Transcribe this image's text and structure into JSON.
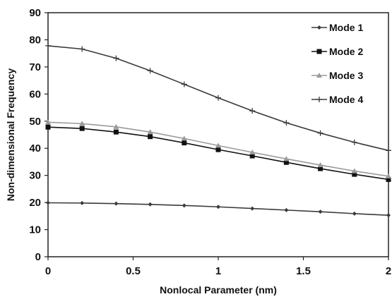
{
  "chart_data": {
    "type": "line",
    "title": "",
    "xlabel": "Nonlocal Parameter  (nm)",
    "ylabel": "Non-dimensional Frequency",
    "xlim": [
      0,
      2
    ],
    "ylim": [
      0,
      90
    ],
    "x_ticks": [
      0,
      0.5,
      1,
      1.5,
      2
    ],
    "x_tick_labels": [
      "0",
      "0.5",
      "1",
      "1.5",
      "2"
    ],
    "y_ticks": [
      0,
      10,
      20,
      30,
      40,
      50,
      60,
      70,
      80,
      90
    ],
    "y_tick_labels": [
      "0",
      "10",
      "20",
      "30",
      "40",
      "50",
      "60",
      "70",
      "80",
      "90"
    ],
    "grid": false,
    "legend_position": "top-right",
    "x": [
      0,
      0.2,
      0.4,
      0.6,
      0.8,
      1.0,
      1.2,
      1.4,
      1.6,
      1.8,
      2.0
    ],
    "series": [
      {
        "name": "Mode 1",
        "marker": "diamond",
        "color": "#3a3a3a",
        "values": [
          19.9,
          19.8,
          19.6,
          19.3,
          18.9,
          18.4,
          17.8,
          17.2,
          16.6,
          15.9,
          15.3
        ]
      },
      {
        "name": "Mode 2",
        "marker": "square",
        "color": "#111111",
        "values": [
          47.8,
          47.3,
          46.0,
          44.3,
          42.0,
          39.5,
          37.2,
          34.8,
          32.5,
          30.4,
          28.5
        ]
      },
      {
        "name": "Mode 3",
        "marker": "triangle",
        "color": "#9a9a9a",
        "values": [
          49.6,
          49.1,
          47.9,
          46.0,
          43.6,
          41.0,
          38.5,
          36.1,
          33.8,
          31.6,
          29.7
        ]
      },
      {
        "name": "Mode 4",
        "marker": "cross",
        "color": "#3a3a3a",
        "values": [
          77.8,
          76.6,
          73.2,
          68.6,
          63.6,
          58.6,
          53.8,
          49.4,
          45.6,
          42.2,
          39.2
        ]
      }
    ]
  }
}
